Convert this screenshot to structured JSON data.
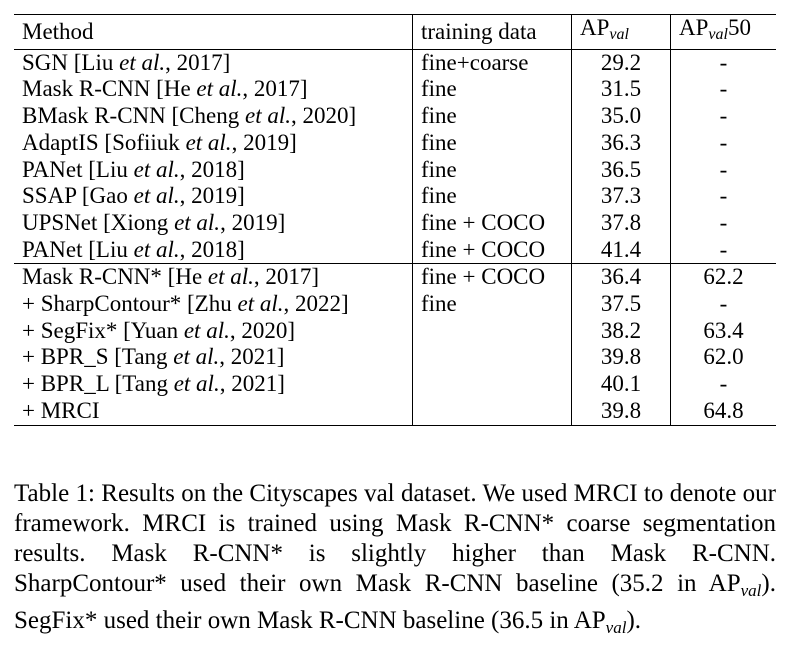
{
  "table": {
    "headers": {
      "method": "Method",
      "training": "training data",
      "ap_main": "AP",
      "ap_sub": "val",
      "ap50_main": "AP",
      "ap50_sub": "val",
      "ap50_tail": "50"
    },
    "rows": [
      {
        "pre": "SGN [Liu ",
        "et": "et al.",
        "post": ", 2017]",
        "training": "fine+coarse",
        "ap": "29.2",
        "ap50": "-"
      },
      {
        "pre": "Mask R-CNN [He ",
        "et": "et al.",
        "post": ", 2017]",
        "training": "fine",
        "ap": "31.5",
        "ap50": "-"
      },
      {
        "pre": "BMask R-CNN [Cheng ",
        "et": "et al.",
        "post": ", 2020]",
        "training": "fine",
        "ap": "35.0",
        "ap50": "-"
      },
      {
        "pre": "AdaptIS [Sofiiuk ",
        "et": "et al.",
        "post": ", 2019]",
        "training": "fine",
        "ap": "36.3",
        "ap50": "-"
      },
      {
        "pre": "PANet [Liu ",
        "et": "et al.",
        "post": ", 2018]",
        "training": "fine",
        "ap": "36.5",
        "ap50": "-"
      },
      {
        "pre": "SSAP [Gao ",
        "et": "et al.",
        "post": ", 2019]",
        "training": "fine",
        "ap": "37.3",
        "ap50": "-"
      },
      {
        "pre": "UPSNet [Xiong ",
        "et": "et al.",
        "post": ", 2019]",
        "training": "fine + COCO",
        "ap": "37.8",
        "ap50": "-"
      },
      {
        "pre": "PANet [Liu ",
        "et": "et al.",
        "post": ", 2018]",
        "training": "fine + COCO",
        "ap": "41.4",
        "ap50": "-"
      },
      {
        "pre": "Mask R-CNN* [He ",
        "et": "et al.",
        "post": ", 2017]",
        "training": "fine + COCO",
        "ap": "36.4",
        "ap50": "62.2"
      },
      {
        "pre": "+ SharpContour* [Zhu ",
        "et": "et al.",
        "post": ", 2022]",
        "training": "fine",
        "ap": "37.5",
        "ap50": "-"
      },
      {
        "pre": "+ SegFix* [Yuan ",
        "et": "et al.",
        "post": ", 2020]",
        "training": "",
        "ap": "38.2",
        "ap50": "63.4"
      },
      {
        "pre": "+ BPR_S [Tang ",
        "et": "et al.",
        "post": ", 2021]",
        "training": "",
        "ap": "39.8",
        "ap50": "62.0"
      },
      {
        "pre": "+ BPR_L [Tang ",
        "et": "et al.",
        "post": ", 2021]",
        "training": "",
        "ap": "40.1",
        "ap50": "-"
      },
      {
        "pre": "+ MRCI",
        "et": "",
        "post": "",
        "training": "",
        "ap": "39.8",
        "ap50": "64.8"
      }
    ]
  },
  "caption": {
    "part1": "Table 1: Results on the Cityscapes val dataset. We used MRCI to denote our framework. MRCI is trained using Mask R-CNN* coarse segmentation results. Mask R-CNN* is slightly higher than Mask R-CNN. SharpContour* used their own Mask R-CNN baseline (35.2 in ",
    "ap1": "AP",
    "sub1": "val",
    "part2": "). SegFix* used their own Mask R-CNN baseline (36.5 in ",
    "ap2": "AP",
    "sub2": "val",
    "part3": ")."
  }
}
